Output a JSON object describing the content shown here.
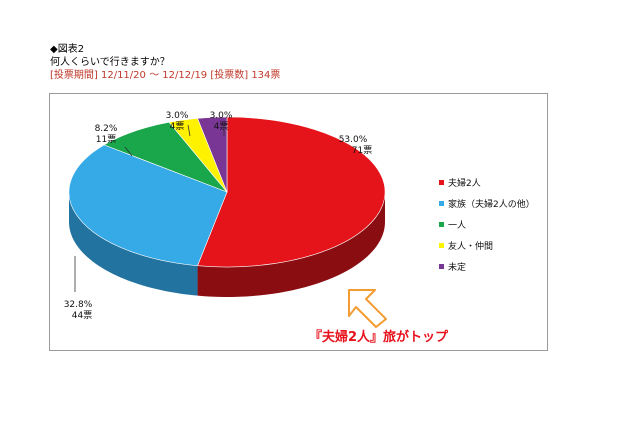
{
  "header": {
    "figure_label": "◆図表2",
    "question": "何人くらいで行きますか？",
    "period": "[投票期間] 12/11/20 ～ 12/12/19 [投票数] 134票"
  },
  "chart_data": {
    "type": "pie",
    "style": "3d-pie",
    "categories": [
      "夫婦2人",
      "家族（夫婦2人の他）",
      "一人",
      "友人・仲間",
      "未定"
    ],
    "values": [
      71,
      44,
      11,
      4,
      4
    ],
    "percent_labels": [
      "53.0%",
      "32.8%",
      "8.2%",
      "3.0%",
      "3.0%"
    ],
    "count_labels": [
      "71票",
      "44票",
      "11票",
      "4票",
      "4票"
    ],
    "colors": [
      "#e5141a",
      "#35aae6",
      "#1aa64b",
      "#fff200",
      "#7a3694"
    ],
    "side_colors": [
      "#8a0d12",
      "#2273a0",
      "#137a37",
      "#b8ad00",
      "#4f2262"
    ],
    "legend_position": "right",
    "annotation": "『夫婦2人』旅がトップ"
  }
}
